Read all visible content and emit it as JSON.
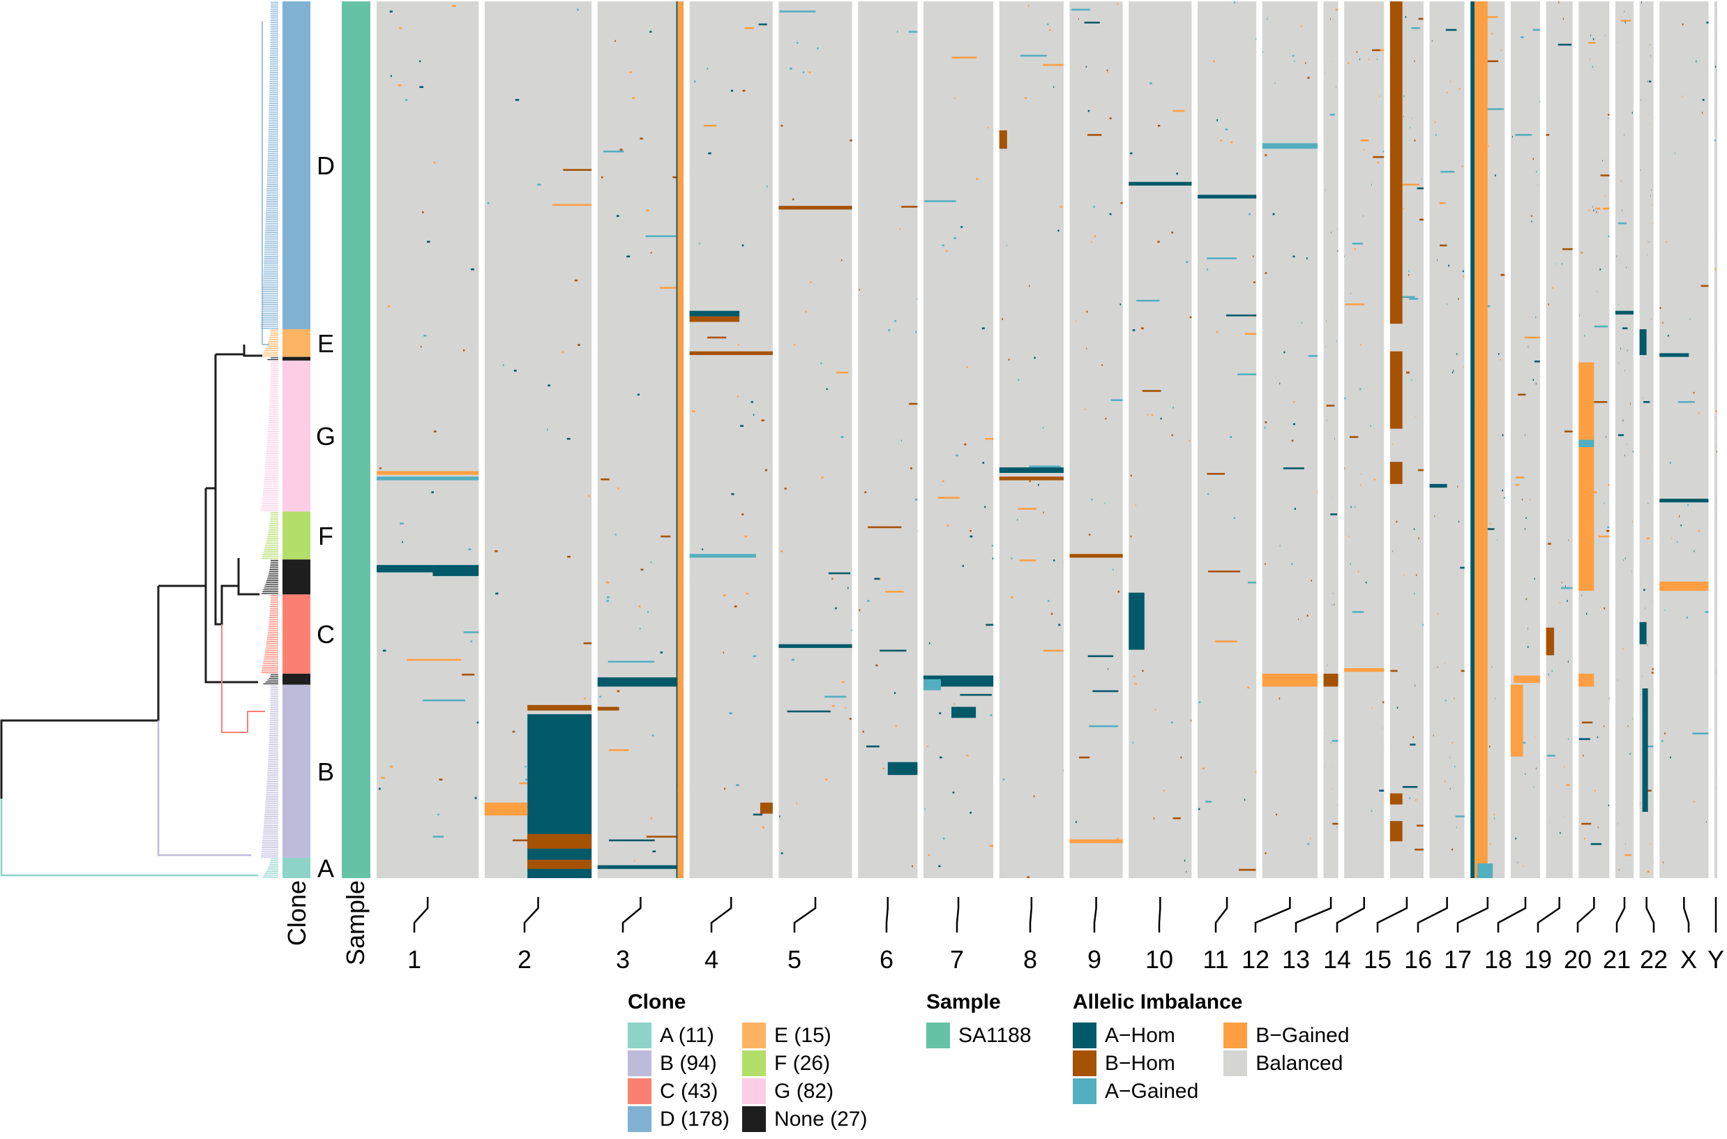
{
  "chart_data": {
    "type": "heatmap",
    "title": "",
    "xlabel": "",
    "ylabel": "",
    "row_annotations": [
      "Clone",
      "Sample"
    ],
    "clone_order_top_to_bottom": [
      {
        "clone": "D",
        "cells": 178,
        "label": "D"
      },
      {
        "clone": "E",
        "cells": 15,
        "label": "E"
      },
      {
        "clone": "None",
        "cells": 2,
        "label": ""
      },
      {
        "clone": "G",
        "cells": 82,
        "label": "G"
      },
      {
        "clone": "F",
        "cells": 26,
        "label": "F"
      },
      {
        "clone": "None",
        "cells": 19,
        "label": ""
      },
      {
        "clone": "C",
        "cells": 43,
        "label": "C"
      },
      {
        "clone": "None",
        "cells": 6,
        "label": ""
      },
      {
        "clone": "B",
        "cells": 94,
        "label": "B"
      },
      {
        "clone": "A",
        "cells": 11,
        "label": "A"
      }
    ],
    "total_cells": 476,
    "sample": "SA1188",
    "chromosomes": [
      {
        "name": "1",
        "rel_size": 146
      },
      {
        "name": "2",
        "rel_size": 153
      },
      {
        "name": "3",
        "rel_size": 123
      },
      {
        "name": "4",
        "rel_size": 119
      },
      {
        "name": "5",
        "rel_size": 105
      },
      {
        "name": "6",
        "rel_size": 85
      },
      {
        "name": "7",
        "rel_size": 100
      },
      {
        "name": "8",
        "rel_size": 92
      },
      {
        "name": "9",
        "rel_size": 76
      },
      {
        "name": "10",
        "rel_size": 90
      },
      {
        "name": "11",
        "rel_size": 84
      },
      {
        "name": "12",
        "rel_size": 79
      },
      {
        "name": "13",
        "rel_size": 21
      },
      {
        "name": "14",
        "rel_size": 57
      },
      {
        "name": "15",
        "rel_size": 48
      },
      {
        "name": "16",
        "rel_size": 50
      },
      {
        "name": "17",
        "rel_size": 49
      },
      {
        "name": "18",
        "rel_size": 42
      },
      {
        "name": "19",
        "rel_size": 38
      },
      {
        "name": "20",
        "rel_size": 44
      },
      {
        "name": "21",
        "rel_size": 26
      },
      {
        "name": "22",
        "rel_size": 20
      },
      {
        "name": "X",
        "rel_size": 70
      },
      {
        "name": "Y",
        "rel_size": 4
      }
    ],
    "states": {
      "A-Hom": "#02596a",
      "B-Hom": "#a65203",
      "A-Gained": "#53afc0",
      "B-Gained": "#fe9f42",
      "Balanced": "#d5d5d4"
    },
    "segments": [
      {
        "chr": "3",
        "s": 0.93,
        "e": 1.0,
        "r0": 0,
        "r1": 476,
        "state": "B-Gained"
      },
      {
        "chr": "3",
        "s": 0.915,
        "e": 0.93,
        "r0": 0,
        "r1": 476,
        "state": "A-Hom",
        "sparse": true
      },
      {
        "chr": "15",
        "s": 0.0,
        "e": 0.37,
        "r0": 0,
        "r1": 175,
        "state": "B-Hom"
      },
      {
        "chr": "15",
        "s": 0.0,
        "e": 0.37,
        "r0": 190,
        "r1": 232,
        "state": "B-Hom"
      },
      {
        "chr": "15",
        "s": 0.0,
        "e": 0.37,
        "r0": 250,
        "r1": 262,
        "state": "B-Hom"
      },
      {
        "chr": "15",
        "s": 0.0,
        "e": 0.37,
        "r0": 430,
        "r1": 436,
        "state": "B-Hom"
      },
      {
        "chr": "15",
        "s": 0.0,
        "e": 0.37,
        "r0": 445,
        "r1": 456,
        "state": "B-Hom"
      },
      {
        "chr": "17",
        "s": 0.0,
        "e": 0.12,
        "r0": 0,
        "r1": 476,
        "state": "A-Hom"
      },
      {
        "chr": "17",
        "s": 0.12,
        "e": 0.5,
        "r0": 0,
        "r1": 476,
        "state": "B-Gained"
      },
      {
        "chr": "18",
        "s": 0.0,
        "e": 0.42,
        "r0": 371,
        "r1": 410,
        "state": "B-Gained"
      },
      {
        "chr": "17",
        "s": 0.2,
        "e": 0.65,
        "r0": 468,
        "r1": 476,
        "state": "A-Gained"
      },
      {
        "chr": "2",
        "s": 0.4,
        "e": 1.0,
        "r0": 387,
        "r1": 476,
        "state": "A-Hom"
      },
      {
        "chr": "2",
        "s": 0.4,
        "e": 1.0,
        "r0": 382,
        "r1": 385,
        "state": "B-Hom"
      },
      {
        "chr": "2",
        "s": 0.4,
        "e": 1.0,
        "r0": 452,
        "r1": 460,
        "state": "B-Hom"
      },
      {
        "chr": "2",
        "s": 0.0,
        "e": 0.4,
        "r0": 435,
        "r1": 442,
        "state": "B-Gained"
      },
      {
        "chr": "2",
        "s": 0.4,
        "e": 1.0,
        "r0": 466,
        "r1": 471,
        "state": "B-Hom"
      },
      {
        "chr": "3",
        "s": 0.0,
        "e": 0.93,
        "r0": 367,
        "r1": 372,
        "state": "A-Hom"
      },
      {
        "chr": "3",
        "s": 0.0,
        "e": 0.25,
        "r0": 383,
        "r1": 385,
        "state": "B-Hom"
      },
      {
        "chr": "3",
        "s": 0.0,
        "e": 0.93,
        "r0": 469,
        "r1": 471,
        "state": "A-Hom"
      },
      {
        "chr": "4",
        "s": 0.0,
        "e": 0.6,
        "r0": 168,
        "r1": 171,
        "state": "A-Hom"
      },
      {
        "chr": "4",
        "s": 0.0,
        "e": 0.6,
        "r0": 171,
        "r1": 174,
        "state": "B-Hom"
      },
      {
        "chr": "4",
        "s": 0.0,
        "e": 1.0,
        "r0": 190,
        "r1": 192,
        "state": "B-Hom"
      },
      {
        "chr": "4",
        "s": 0.0,
        "e": 0.8,
        "r0": 300,
        "r1": 302,
        "state": "A-Gained"
      },
      {
        "chr": "4",
        "s": 0.85,
        "e": 1.0,
        "r0": 435,
        "r1": 441,
        "state": "B-Hom"
      },
      {
        "chr": "1",
        "s": 0.0,
        "e": 0.55,
        "r0": 306,
        "r1": 310,
        "state": "A-Hom"
      },
      {
        "chr": "1",
        "s": 0.55,
        "e": 1.0,
        "r0": 306,
        "r1": 312,
        "state": "A-Hom"
      },
      {
        "chr": "1",
        "s": 0.0,
        "e": 1.0,
        "r0": 258,
        "r1": 260,
        "state": "A-Gained"
      },
      {
        "chr": "1",
        "s": 0.0,
        "e": 1.0,
        "r0": 255,
        "r1": 257,
        "state": "B-Gained"
      },
      {
        "chr": "7",
        "s": 0.0,
        "e": 1.0,
        "r0": 366,
        "r1": 372,
        "state": "A-Hom"
      },
      {
        "chr": "7",
        "s": 0.0,
        "e": 0.25,
        "r0": 368,
        "r1": 374,
        "state": "A-Gained"
      },
      {
        "chr": "7",
        "s": 0.4,
        "e": 0.75,
        "r0": 383,
        "r1": 389,
        "state": "A-Hom"
      },
      {
        "chr": "8",
        "s": 0.0,
        "e": 0.12,
        "r0": 70,
        "r1": 80,
        "state": "B-Hom"
      },
      {
        "chr": "8",
        "s": 0.0,
        "e": 1.0,
        "r0": 253,
        "r1": 256,
        "state": "A-Hom"
      },
      {
        "chr": "8",
        "s": 0.0,
        "e": 1.0,
        "r0": 258,
        "r1": 260,
        "state": "B-Hom"
      },
      {
        "chr": "10",
        "s": 0.0,
        "e": 0.25,
        "r0": 321,
        "r1": 352,
        "state": "A-Hom"
      },
      {
        "chr": "10",
        "s": 0.0,
        "e": 1.0,
        "r0": 98,
        "r1": 100,
        "state": "A-Hom"
      },
      {
        "chr": "11",
        "s": 0.0,
        "e": 1.0,
        "r0": 105,
        "r1": 107,
        "state": "A-Hom"
      },
      {
        "chr": "12",
        "s": 0.0,
        "e": 1.0,
        "r0": 77,
        "r1": 80,
        "state": "A-Gained"
      },
      {
        "chr": "12",
        "s": 0.0,
        "e": 1.0,
        "r0": 365,
        "r1": 372,
        "state": "B-Gained"
      },
      {
        "chr": "13",
        "s": 0.0,
        "e": 1.0,
        "r0": 365,
        "r1": 372,
        "state": "B-Hom"
      },
      {
        "chr": "14",
        "s": 0.0,
        "e": 1.0,
        "r0": 362,
        "r1": 364,
        "state": "B-Gained"
      },
      {
        "chr": "20",
        "s": 0.0,
        "e": 0.5,
        "r0": 196,
        "r1": 320,
        "state": "B-Gained"
      },
      {
        "chr": "20",
        "s": 0.0,
        "e": 0.5,
        "r0": 238,
        "r1": 242,
        "state": "A-Gained"
      },
      {
        "chr": "20",
        "s": 0.0,
        "e": 0.5,
        "r0": 365,
        "r1": 372,
        "state": "B-Gained"
      },
      {
        "chr": "19",
        "s": 0.0,
        "e": 0.3,
        "r0": 340,
        "r1": 355,
        "state": "B-Hom"
      },
      {
        "chr": "22",
        "s": 0.0,
        "e": 0.5,
        "r0": 178,
        "r1": 192,
        "state": "A-Hom"
      },
      {
        "chr": "22",
        "s": 0.2,
        "e": 0.6,
        "r0": 373,
        "r1": 440,
        "state": "A-Hom"
      },
      {
        "chr": "22",
        "s": 0.0,
        "e": 0.5,
        "r0": 337,
        "r1": 349,
        "state": "A-Hom"
      },
      {
        "chr": "X",
        "s": 0.0,
        "e": 1.0,
        "r0": 315,
        "r1": 320,
        "state": "B-Gained"
      },
      {
        "chr": "X",
        "s": 0.0,
        "e": 1.0,
        "r0": 270,
        "r1": 272,
        "state": "A-Hom"
      },
      {
        "chr": "X",
        "s": 0.0,
        "e": 0.6,
        "r0": 191,
        "r1": 193,
        "state": "A-Hom"
      },
      {
        "chr": "16",
        "s": 0.0,
        "e": 0.5,
        "r0": 262,
        "r1": 264,
        "state": "A-Hom"
      },
      {
        "chr": "9",
        "s": 0.0,
        "e": 1.0,
        "r0": 455,
        "r1": 457,
        "state": "B-Gained"
      },
      {
        "chr": "9",
        "s": 0.0,
        "e": 1.0,
        "r0": 300,
        "r1": 302,
        "state": "B-Hom"
      },
      {
        "chr": "5",
        "s": 0.0,
        "e": 1.0,
        "r0": 111,
        "r1": 113,
        "state": "B-Hom"
      },
      {
        "chr": "5",
        "s": 0.0,
        "e": 1.0,
        "r0": 349,
        "r1": 351,
        "state": "A-Hom"
      },
      {
        "chr": "6",
        "s": 0.5,
        "e": 1.0,
        "r0": 413,
        "r1": 420,
        "state": "A-Hom"
      },
      {
        "chr": "18",
        "s": 0.1,
        "e": 1.0,
        "r0": 366,
        "r1": 370,
        "state": "B-Gained"
      },
      {
        "chr": "21",
        "s": 0.0,
        "e": 1.0,
        "r0": 168,
        "r1": 170,
        "state": "A-Hom"
      }
    ]
  },
  "annotation_labels": {
    "clone_axis": "Clone",
    "sample_axis": "Sample"
  },
  "legend": {
    "clone": {
      "title": "Clone",
      "items": [
        {
          "label": "A (11)",
          "color": "#8dd3c7"
        },
        {
          "label": "B (94)",
          "color": "#bebada"
        },
        {
          "label": "C (43)",
          "color": "#fb8072"
        },
        {
          "label": "D (178)",
          "color": "#80b1d3"
        },
        {
          "label": "E (15)",
          "color": "#fdb462"
        },
        {
          "label": "F (26)",
          "color": "#b3de69"
        },
        {
          "label": "G (82)",
          "color": "#fccde5"
        },
        {
          "label": "None (27)",
          "color": "#1e1e1e"
        }
      ]
    },
    "sample": {
      "title": "Sample",
      "items": [
        {
          "label": "SA1188",
          "color": "#66c2a5"
        }
      ]
    },
    "allelic_imbalance": {
      "title": "Allelic Imbalance",
      "items": [
        {
          "label": "A−Hom",
          "color": "#02596a"
        },
        {
          "label": "B−Hom",
          "color": "#a65203"
        },
        {
          "label": "A−Gained",
          "color": "#53afc0"
        },
        {
          "label": "B−Gained",
          "color": "#fe9f42"
        },
        {
          "label": "Balanced",
          "color": "#d5d5d4"
        }
      ]
    }
  }
}
